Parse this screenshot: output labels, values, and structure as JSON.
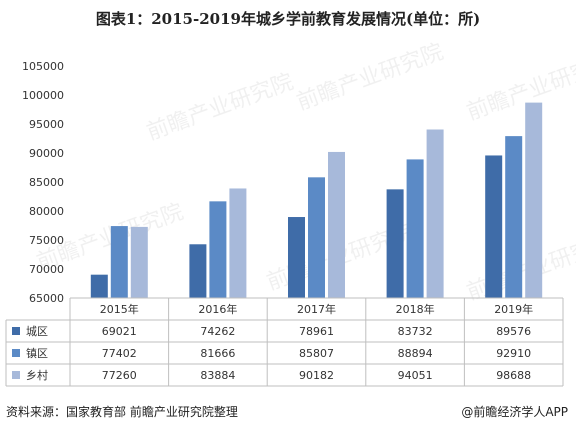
{
  "title": "图表1：2015-2019年城乡学前教育发展情况(单位：所)",
  "footer": {
    "source": "资料来源：国家教育部 前瞻产业研究院整理",
    "credit": "@前瞻经济学人APP"
  },
  "watermark": "前瞻产业研究院",
  "chart_data": {
    "type": "bar",
    "title": "图表1：2015-2019年城乡学前教育发展情况(单位：所)",
    "categories": [
      "2015年",
      "2016年",
      "2017年",
      "2018年",
      "2019年"
    ],
    "series": [
      {
        "name": "城区",
        "values": [
          69021,
          74262,
          78961,
          83732,
          89576
        ],
        "color": "#3F6CA8"
      },
      {
        "name": "镇区",
        "values": [
          77402,
          81666,
          85807,
          88894,
          92910
        ],
        "color": "#5B8AC6"
      },
      {
        "name": "乡村",
        "values": [
          77260,
          83884,
          90182,
          94051,
          98688
        ],
        "color": "#A7B9DA"
      }
    ],
    "ylim": [
      65000,
      105000
    ],
    "yticks": [
      65000,
      70000,
      75000,
      80000,
      85000,
      90000,
      95000,
      100000,
      105000
    ],
    "grid": false,
    "legend": "data table below chart"
  }
}
